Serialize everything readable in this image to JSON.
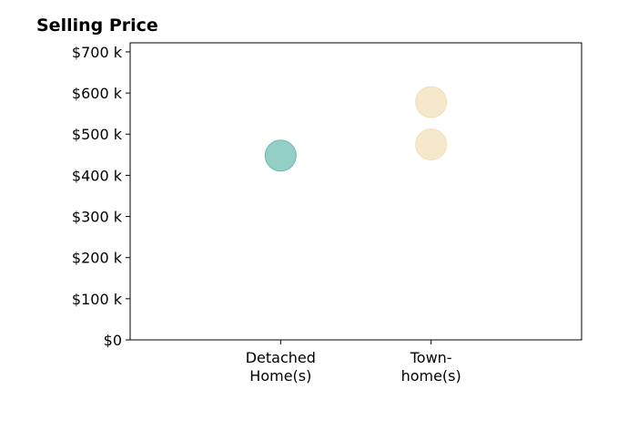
{
  "chart_data": {
    "type": "scatter",
    "title": "Selling Price",
    "xlabel": "",
    "ylabel": "",
    "categories": [
      {
        "lines": [
          "Detached",
          "Home(s)"
        ]
      },
      {
        "lines": [
          "Town-",
          "home(s)"
        ]
      }
    ],
    "x_range": [
      -1,
      2
    ],
    "ylim": [
      0,
      722
    ],
    "yticks": [
      {
        "value": 0,
        "label": "$0"
      },
      {
        "value": 100,
        "label": "$100 k"
      },
      {
        "value": 200,
        "label": "$200 k"
      },
      {
        "value": 300,
        "label": "$300 k"
      },
      {
        "value": 400,
        "label": "$400 k"
      },
      {
        "value": 500,
        "label": "$500 k"
      },
      {
        "value": 600,
        "label": "$600 k"
      },
      {
        "value": 700,
        "label": "$700 k"
      }
    ],
    "series": [
      {
        "category_index": 0,
        "color": "#69bcad",
        "points": [
          448
        ]
      },
      {
        "category_index": 1,
        "color": "#f2dfb7",
        "points": [
          578,
          475
        ]
      }
    ],
    "grid": false,
    "legend": "none"
  }
}
